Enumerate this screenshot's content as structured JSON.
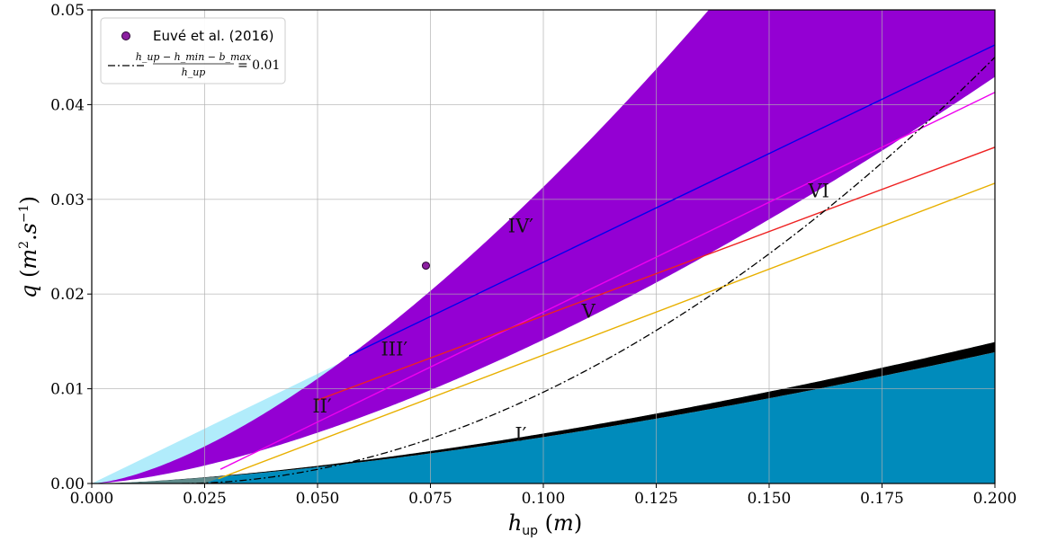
{
  "chart_data": {
    "type": "area",
    "xlabel": "h_up (m)",
    "ylabel": "q (m².s⁻¹)",
    "xlim": [
      0.0,
      0.2
    ],
    "ylim": [
      0.0,
      0.05
    ],
    "grid": true,
    "legend_position": "top-left",
    "x_ticks": [
      "0.000",
      "0.025",
      "0.050",
      "0.075",
      "0.100",
      "0.125",
      "0.150",
      "0.175",
      "0.200"
    ],
    "y_ticks": [
      "0.00",
      "0.01",
      "0.02",
      "0.03",
      "0.04",
      "0.05"
    ],
    "curves": {
      "purple_upper": {
        "a": 0.99,
        "b": 1.5
      },
      "white_upper": {
        "a": 0.48,
        "b": 1.5
      },
      "black_upper": {
        "a": 0.167,
        "b": 1.5
      },
      "black_lower": {
        "a": 0.155,
        "b": 1.5
      },
      "lightblue_lower": {
        "slope": 0.2315
      },
      "salmon_lower": {
        "slope": 0.2065
      },
      "midblue_lower": {
        "slope": 0.1775,
        "x0": 0.0,
        "y0": 0.0
      },
      "green_lower": {
        "x0": 0.0225,
        "slope": 0.1785
      },
      "teal_lower": {
        "x0": 0.025,
        "slope": 0.1795
      },
      "dashdot": {
        "x0": 0.02,
        "k": 1.17,
        "p": 1.9
      }
    },
    "lines": [
      {
        "color": "#0000ee",
        "x": [
          0.057,
          0.2
        ],
        "y": [
          0.0135,
          0.0463
        ]
      },
      {
        "color": "#ee00ee",
        "x": [
          0.0285,
          0.2
        ],
        "y": [
          0.0015,
          0.0413
        ]
      },
      {
        "color": "#ee2222",
        "x": [
          0.05,
          0.2
        ],
        "y": [
          0.0088,
          0.0355
        ]
      },
      {
        "color": "#e8b000",
        "x": [
          0.028,
          0.2
        ],
        "y": [
          0.0005,
          0.0317
        ]
      }
    ],
    "point": {
      "x": 0.074,
      "y": 0.023,
      "label": "Euvé et al. (2016)"
    },
    "legend": [
      {
        "label": "Euvé et al. (2016)",
        "type": "marker",
        "color": "#8b1fa0"
      },
      {
        "label": "(h_up − h_min − b_max) / h_up = 0.01",
        "type": "dashdot",
        "color": "#000000"
      }
    ],
    "regions": [
      {
        "label": "I′",
        "x": 0.095,
        "y": 0.0045
      },
      {
        "label": "II′",
        "x": 0.051,
        "y": 0.0075
      },
      {
        "label": "III′",
        "x": 0.067,
        "y": 0.0135
      },
      {
        "label": "IV′",
        "x": 0.095,
        "y": 0.0265
      },
      {
        "label": "V",
        "x": 0.11,
        "y": 0.0175
      },
      {
        "label": "VI",
        "x": 0.161,
        "y": 0.0302
      }
    ]
  },
  "legend_text": {
    "marker_label": "Euvé et al. (2016)",
    "frac_top": "h_up − h_min − b_max",
    "frac_bottom": "h_up",
    "eq": "= 0.01"
  },
  "axis_text": {
    "x_label": "h_up (m)",
    "y_label": "q (m².s⁻¹)"
  },
  "colors": {
    "purple": "#9400d3",
    "white": "#ffffff",
    "black": "#000000",
    "light_blue": "#b1ecfb",
    "salmon": "#efb4a0",
    "mid_blue": "#4dbcea",
    "green": "#2e8b57",
    "teal": "#008bbb",
    "gray_teal": "#5d8a8a"
  }
}
